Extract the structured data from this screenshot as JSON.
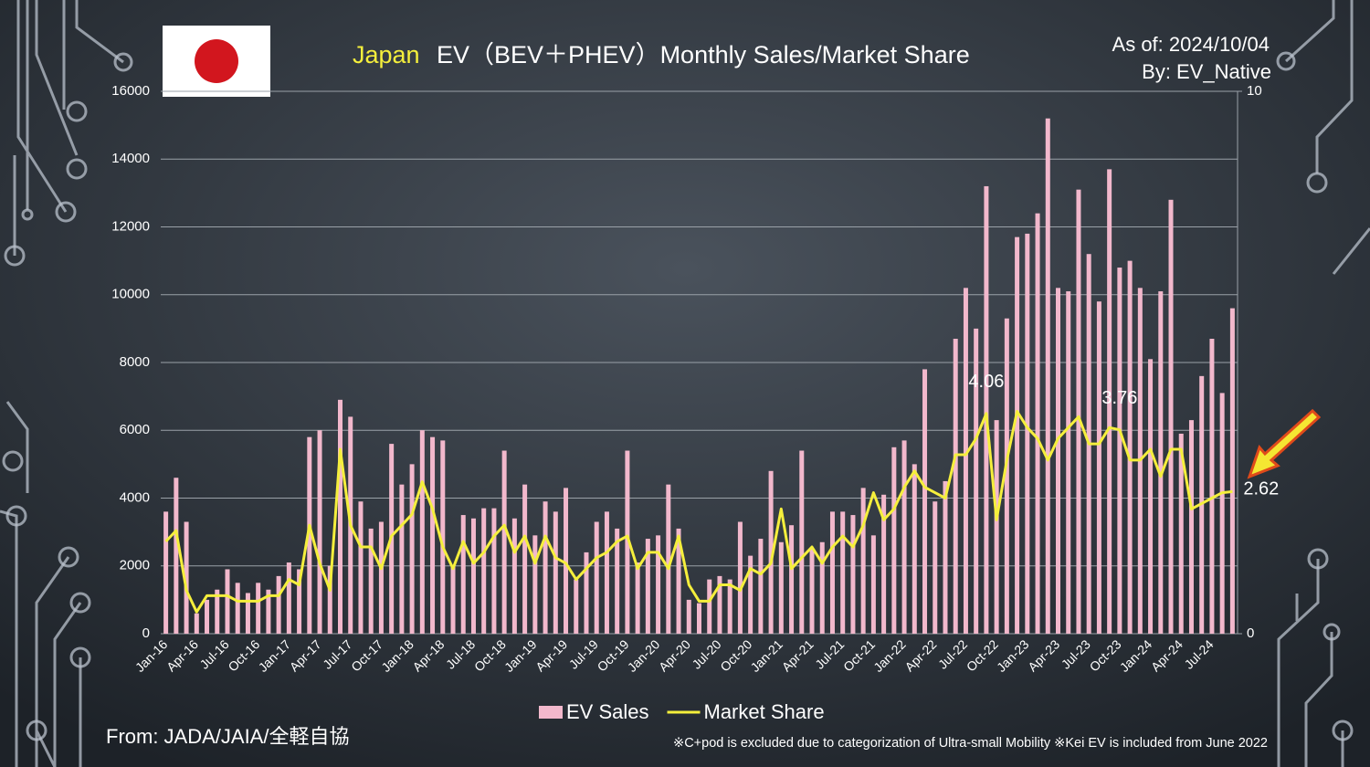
{
  "chart_data": {
    "type": "bar-line",
    "title_highlight": "Japan",
    "title": "EV（BEV＋PHEV）Monthly Sales/Market Share",
    "as_of": "As of: 2024/10/04",
    "by": "By: EV_Native",
    "source": "From: JADA/JAIA/全軽自協",
    "footnote": "※C+pod is excluded due to categorization of Ultra-small Mobility ※Kei EV is included from June 2022",
    "categories": [
      "Jan-16",
      null,
      null,
      "Apr-16",
      null,
      null,
      "Jul-16",
      null,
      null,
      "Oct-16",
      null,
      null,
      "Jan-17",
      null,
      null,
      "Apr-17",
      null,
      null,
      "Jul-17",
      null,
      null,
      "Oct-17",
      null,
      null,
      "Jan-18",
      null,
      null,
      "Apr-18",
      null,
      null,
      "Jul-18",
      null,
      null,
      "Oct-18",
      null,
      null,
      "Jan-19",
      null,
      null,
      "Apr-19",
      null,
      null,
      "Jul-19",
      null,
      null,
      "Oct-19",
      null,
      null,
      "Jan-20",
      null,
      null,
      "Apr-20",
      null,
      null,
      "Jul-20",
      null,
      null,
      "Oct-20",
      null,
      null,
      "Jan-21",
      null,
      null,
      "Apr-21",
      null,
      null,
      "Jul-21",
      null,
      null,
      "Oct-21",
      null,
      null,
      "Jan-22",
      null,
      null,
      "Apr-22",
      null,
      null,
      "Jul-22",
      null,
      null,
      "Oct-22",
      null,
      null,
      "Jan-23",
      null,
      null,
      "Apr-23",
      null,
      null,
      "Jul-23",
      null,
      null,
      "Oct-23",
      null,
      null,
      "Jan-24",
      null,
      null,
      "Apr-24",
      null,
      null,
      "Jul-24",
      null,
      null
    ],
    "series": [
      {
        "name": "EV Sales",
        "color": "#f2b8cc",
        "type": "bar",
        "values": [
          3600,
          4600,
          3300,
          600,
          1000,
          1300,
          1900,
          1500,
          1200,
          1500,
          1300,
          1700,
          2100,
          1900,
          5800,
          6000,
          2000,
          6900,
          6400,
          3900,
          3100,
          3300,
          5600,
          4400,
          5000,
          6000,
          5800,
          5700,
          2000,
          3500,
          3400,
          3700,
          3700,
          5400,
          3400,
          4400,
          2900,
          3900,
          3600,
          4300,
          1600,
          2400,
          3300,
          3600,
          3100,
          5400,
          2100,
          2800,
          2900,
          4400,
          3100,
          1000,
          900,
          1600,
          1700,
          1600,
          3300,
          2300,
          2800,
          4800,
          2700,
          3200,
          5400,
          2500,
          2700,
          3600,
          3600,
          3500,
          4300,
          2900,
          4100,
          5500,
          5700,
          5000,
          7800,
          3900,
          4500,
          8700,
          10200,
          9000,
          13200,
          6300,
          9300,
          11700,
          11800,
          12400,
          15200,
          10200,
          10100,
          13100,
          11200,
          9800,
          13700,
          10800,
          11000,
          10200,
          8100,
          10100,
          12800,
          5900,
          6300,
          7600,
          8700,
          7100,
          9600
        ]
      },
      {
        "name": "Market Share",
        "color": "#f5ef3c",
        "type": "line",
        "axis": "y2",
        "values": [
          1.7,
          1.9,
          0.8,
          0.4,
          0.7,
          0.7,
          0.7,
          0.6,
          0.6,
          0.6,
          0.7,
          0.7,
          1.0,
          0.9,
          2.0,
          1.3,
          0.8,
          3.4,
          2.0,
          1.6,
          1.6,
          1.2,
          1.8,
          2.0,
          2.2,
          2.8,
          2.3,
          1.6,
          1.2,
          1.7,
          1.3,
          1.5,
          1.8,
          2.0,
          1.5,
          1.8,
          1.3,
          1.8,
          1.4,
          1.3,
          1.0,
          1.2,
          1.4,
          1.5,
          1.7,
          1.8,
          1.2,
          1.5,
          1.5,
          1.2,
          1.8,
          0.9,
          0.6,
          0.6,
          0.9,
          0.9,
          0.8,
          1.2,
          1.1,
          1.3,
          2.3,
          1.2,
          1.4,
          1.6,
          1.3,
          1.6,
          1.8,
          1.6,
          2.0,
          2.6,
          2.1,
          2.3,
          2.7,
          3.0,
          2.7,
          2.6,
          2.5,
          3.3,
          3.3,
          3.6,
          4.06,
          2.1,
          3.2,
          4.1,
          3.8,
          3.6,
          3.2,
          3.6,
          3.8,
          4.0,
          3.5,
          3.5,
          3.8,
          3.76,
          3.2,
          3.2,
          3.4,
          2.9,
          3.4,
          3.4,
          2.3,
          2.4,
          2.5,
          2.6,
          2.62
        ]
      }
    ],
    "data_labels": [
      80,
      93,
      104
    ],
    "ylim": [
      0,
      16000
    ],
    "yticks": [
      0,
      2000,
      4000,
      6000,
      8000,
      10000,
      12000,
      14000,
      16000
    ],
    "y2lim": [
      0,
      10
    ],
    "y2ticks": [
      0,
      10
    ],
    "grid": true
  }
}
